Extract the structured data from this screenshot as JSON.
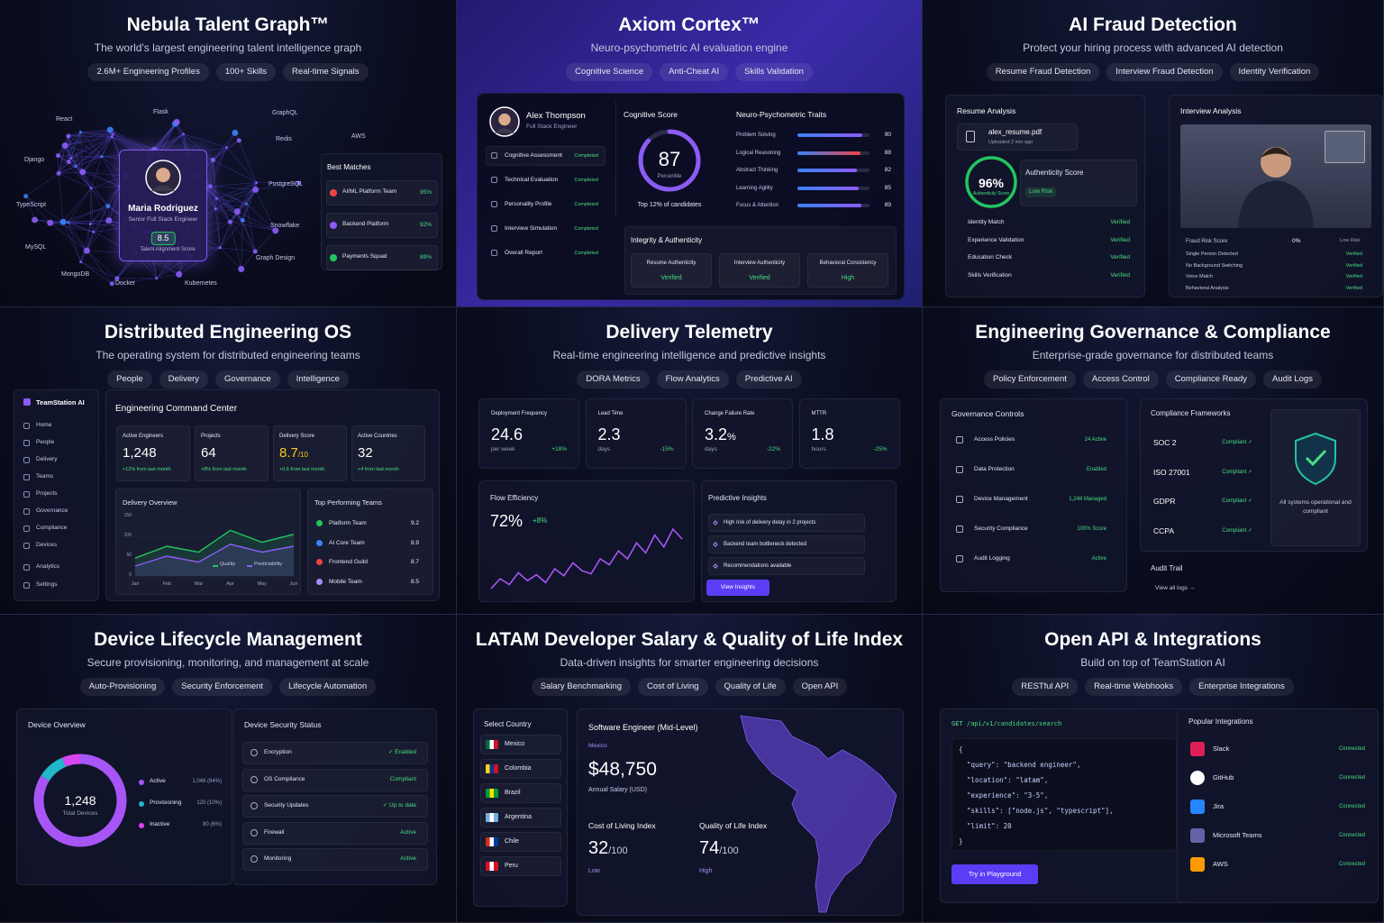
{
  "panels": [
    {
      "title": "Nebula Talent Graph™",
      "subtitle": "The world's largest engineering talent intelligence graph",
      "tags": [
        "2.6M+ Engineering Profiles",
        "100+ Skills",
        "Real-time Signals"
      ],
      "skills": [
        "React",
        "Flask",
        "GraphQL",
        "AWS",
        "Django",
        "PostgreSQL",
        "TypeScript",
        "Snowflake",
        "MySQL",
        "Graph Design",
        "MongoDB",
        "Docker",
        "Kubernetes",
        "Redis"
      ],
      "profile": {
        "name": "Maria Rodriguez",
        "role": "Senior Full Stack Engineer",
        "score": "8.5",
        "score_label": "Talent Alignment Score"
      },
      "matches": {
        "title": "Best Matches",
        "items": [
          {
            "name": "AI/ML Platform Team",
            "pct": "95%"
          },
          {
            "name": "Backend Platform",
            "pct": "92%"
          },
          {
            "name": "Payments Squad",
            "pct": "89%"
          }
        ]
      }
    },
    {
      "title": "Axiom Cortex™",
      "subtitle": "Neuro-psychometric AI evaluation engine",
      "tags": [
        "Cognitive Science",
        "Anti-Cheat AI",
        "Skills Validation"
      ],
      "candidate": {
        "name": "Alex Thompson",
        "role": "Full Stack Engineer"
      },
      "steps": [
        {
          "name": "Cognitive Assessment",
          "status": "Completed"
        },
        {
          "name": "Technical Evaluation",
          "status": "Completed"
        },
        {
          "name": "Personality Profile",
          "status": "Completed"
        },
        {
          "name": "Interview Simulation",
          "status": "Completed"
        },
        {
          "name": "Overall Report",
          "status": "Completed"
        }
      ],
      "cognitive": {
        "title": "Cognitive Score",
        "score": 87,
        "label": "Percentile",
        "note": "Top 12% of candidates"
      },
      "traits": {
        "title": "Neuro-Psychometric Traits",
        "items": [
          {
            "name": "Problem Solving",
            "value": 90
          },
          {
            "name": "Logical Reasoning",
            "value": 88
          },
          {
            "name": "Abstract Thinking",
            "value": 82
          },
          {
            "name": "Learning Agility",
            "value": 85
          },
          {
            "name": "Focus & Attention",
            "value": 89
          }
        ]
      },
      "integrity": {
        "title": "Integrity & Authenticity",
        "items": [
          {
            "name": "Resume Authenticity",
            "status": "Verified"
          },
          {
            "name": "Interview Authenticity",
            "status": "Verified"
          },
          {
            "name": "Behavioral Consistency",
            "status": "High"
          }
        ]
      }
    },
    {
      "title": "AI Fraud Detection",
      "subtitle": "Protect your hiring process with advanced AI detection",
      "tags": [
        "Resume Fraud Detection",
        "Interview Fraud Detection",
        "Identity Verification"
      ],
      "resume": {
        "title": "Resume Analysis",
        "file": "alex_resume.pdf",
        "uploaded": "Uploaded 2 min ago",
        "score": "96%",
        "score_label": "Authenticity Score",
        "auth_title": "Authenticity Score",
        "risk": "Low Risk",
        "checks": [
          {
            "name": "Identity Match",
            "status": "Verified"
          },
          {
            "name": "Experience Validation",
            "status": "Verified"
          },
          {
            "name": "Education Check",
            "status": "Verified"
          },
          {
            "name": "Skills Verification",
            "status": "Verified"
          }
        ]
      },
      "interview": {
        "title": "Interview Analysis",
        "risk_label": "Fraud Risk Score",
        "risk_value": "0%",
        "risk_note": "Low Risk",
        "checks": [
          {
            "name": "Single Person Detected",
            "status": "Verified"
          },
          {
            "name": "No Background Switching",
            "status": "Verified"
          },
          {
            "name": "Voice Match",
            "status": "Verified"
          },
          {
            "name": "Behavioral Analysis",
            "status": "Verified"
          }
        ]
      }
    },
    {
      "title": "Distributed Engineering OS",
      "subtitle": "The operating system for distributed engineering teams",
      "tags": [
        "People",
        "Delivery",
        "Governance",
        "Intelligence"
      ],
      "sidebar": {
        "brand": "TeamStation AI",
        "items": [
          "Home",
          "People",
          "Delivery",
          "Teams",
          "Projects",
          "Governance",
          "Compliance",
          "Devices",
          "Analytics",
          "Settings"
        ]
      },
      "command": {
        "title": "Engineering Command Center",
        "kpis": [
          {
            "label": "Active Engineers",
            "value": "1,248",
            "suffix": "",
            "delta": "+12% from last month"
          },
          {
            "label": "Projects",
            "value": "64",
            "suffix": "",
            "delta": "+8% from last month"
          },
          {
            "label": "Delivery Score",
            "value": "8.7",
            "suffix": "/10",
            "delta": "+0.6 from last month"
          },
          {
            "label": "Active Countries",
            "value": "32",
            "suffix": "",
            "delta": "+4 from last month"
          }
        ]
      },
      "delivery": {
        "title": "Delivery Overview",
        "categories": [
          "Jan",
          "Feb",
          "Mar",
          "Apr",
          "May",
          "Jun"
        ],
        "ylim": [
          0,
          150
        ],
        "yticks": [
          0,
          50,
          100,
          150
        ],
        "series": [
          {
            "name": "Quality",
            "color": "#22c55e",
            "values": [
              45,
              75,
              60,
              115,
              85,
              105
            ]
          },
          {
            "name": "Predictability",
            "color": "#8b5cf6",
            "values": [
              25,
              50,
              35,
              80,
              60,
              75
            ]
          }
        ]
      },
      "top_teams": {
        "title": "Top Performing Teams",
        "items": [
          {
            "name": "Platform Team",
            "score": "9.2"
          },
          {
            "name": "AI Core Team",
            "score": "8.9"
          },
          {
            "name": "Frontend Guild",
            "score": "8.7"
          },
          {
            "name": "Mobile Team",
            "score": "8.5"
          }
        ]
      }
    },
    {
      "title": "Delivery Telemetry",
      "subtitle": "Real-time engineering intelligence and predictive insights",
      "tags": [
        "DORA Metrics",
        "Flow Analytics",
        "Predictive AI"
      ],
      "metrics": [
        {
          "label": "Deployment Frequency",
          "value": "24.6",
          "suffix": "",
          "unit": "per week",
          "delta": "+18%"
        },
        {
          "label": "Lead Time",
          "value": "2.3",
          "suffix": "",
          "unit": "days",
          "delta": "-15%"
        },
        {
          "label": "Change Failure Rate",
          "value": "3.2",
          "suffix": "%",
          "unit": "days",
          "delta": "-22%"
        },
        {
          "label": "MTTR",
          "value": "1.8",
          "suffix": "",
          "unit": "hours",
          "delta": "-25%"
        }
      ],
      "flow": {
        "title": "Flow Efficiency",
        "value": "72%",
        "delta": "+8%",
        "values": [
          20,
          30,
          24,
          36,
          28,
          34,
          26,
          40,
          33,
          46,
          38,
          35,
          50,
          44,
          58,
          50,
          66,
          56,
          74,
          62,
          80,
          70
        ]
      },
      "insights": {
        "title": "Predictive Insights",
        "items": [
          "High risk of delivery delay in 2 projects",
          "Backend team bottleneck detected",
          "Recommendations available"
        ],
        "button": "View Insights"
      }
    },
    {
      "title": "Engineering Governance & Compliance",
      "subtitle": "Enterprise-grade governance for distributed teams",
      "tags": [
        "Policy Enforcement",
        "Access Control",
        "Compliance Ready",
        "Audit Logs"
      ],
      "controls": {
        "title": "Governance Controls",
        "items": [
          {
            "name": "Access Policies",
            "status": "24 Active"
          },
          {
            "name": "Data Protection",
            "status": "Enabled"
          },
          {
            "name": "Device Management",
            "status": "1,248 Managed"
          },
          {
            "name": "Security Compliance",
            "status": "100% Score"
          },
          {
            "name": "Audit Logging",
            "status": "Active"
          }
        ]
      },
      "frameworks": {
        "title": "Compliance Frameworks",
        "items": [
          {
            "name": "SOC 2",
            "status": "Compliant ✓"
          },
          {
            "name": "ISO 27001",
            "status": "Compliant ✓"
          },
          {
            "name": "GDPR",
            "status": "Compliant ✓"
          },
          {
            "name": "CCPA",
            "status": "Compliant ✓"
          }
        ],
        "note": "All systems operational and compliant"
      },
      "audit": {
        "title": "Audit Trail",
        "link": "View all logs →"
      }
    },
    {
      "title": "Device Lifecycle Management",
      "subtitle": "Secure provisioning, monitoring, and management at scale",
      "tags": [
        "Auto-Provisioning",
        "Security Enforcement",
        "Lifecycle Automation"
      ],
      "overview": {
        "title": "Device Overview",
        "total": "1,248",
        "total_label": "Total Devices",
        "segments": [
          {
            "name": "Active",
            "value": 1048,
            "label": "1,048 (84%)",
            "color": "#a855f7"
          },
          {
            "name": "Provisioning",
            "value": 120,
            "label": "120 (10%)",
            "color": "#22b8c9"
          },
          {
            "name": "Inactive",
            "value": 80,
            "label": "80 (6%)",
            "color": "#d946ef"
          }
        ]
      },
      "security": {
        "title": "Device Security Status",
        "items": [
          {
            "name": "Encryption",
            "status": "✓ Enabled"
          },
          {
            "name": "OS Compliance",
            "status": "Compliant"
          },
          {
            "name": "Security Updates",
            "status": "✓ Up to date"
          },
          {
            "name": "Firewall",
            "status": "Active"
          },
          {
            "name": "Monitoring",
            "status": "Active"
          }
        ]
      }
    },
    {
      "title": "LATAM Developer Salary & Quality of Life Index",
      "subtitle": "Data-driven insights for smarter engineering decisions",
      "tags": [
        "Salary Benchmarking",
        "Cost of Living",
        "Quality of Life",
        "Open API"
      ],
      "countries": {
        "title": "Select Country",
        "items": [
          "Mexico",
          "Colombia",
          "Brazil",
          "Argentina",
          "Chile",
          "Peru"
        ]
      },
      "salary": {
        "role": "Software Engineer (Mid-Level)",
        "country": "Mexico",
        "value": "$48,750",
        "label": "Annual Salary (USD)",
        "cost": {
          "label": "Cost of Living Index",
          "value": "32",
          "suffix": "/100",
          "level": "Low"
        },
        "quality": {
          "label": "Quality of Life Index",
          "value": "74",
          "suffix": "/100",
          "level": "High"
        }
      }
    },
    {
      "title": "Open API & Integrations",
      "subtitle": "Build on top of TeamStation AI",
      "tags": [
        "RESTful API",
        "Real-time Webhooks",
        "Enterprise Integrations"
      ],
      "api": {
        "endpoint": "GET /api/v1/candidates/search",
        "code": [
          "{",
          "  \"query\": \"backend engineer\",",
          "  \"location\": \"latam\",",
          "  \"experience\": \"3-5\",",
          "  \"skills\": [\"node.js\", \"typescript\"],",
          "  \"limit\": 20",
          "}"
        ],
        "button": "Try in Playground"
      },
      "integrations": {
        "title": "Popular Integrations",
        "items": [
          {
            "name": "Slack",
            "status": "Connected"
          },
          {
            "name": "GitHub",
            "status": "Connected"
          },
          {
            "name": "Jira",
            "status": "Connected"
          },
          {
            "name": "Microsoft Teams",
            "status": "Connected"
          },
          {
            "name": "AWS",
            "status": "Connected"
          }
        ]
      }
    }
  ]
}
